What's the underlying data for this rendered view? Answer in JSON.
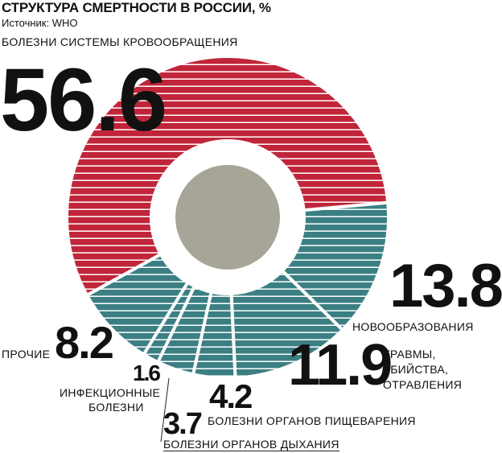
{
  "header": {
    "title": "СТРУКТУРА СМЕРТНОСТИ В РОССИИ, %",
    "source": "Источник: WHO"
  },
  "colors": {
    "red": "#c0253a",
    "teal": "#3b7f83",
    "center": "#a7a597",
    "stripe": "#ffffff"
  },
  "chart_data": {
    "type": "pie",
    "title": "СТРУКТУРА СМЕРТНОСТИ В РОССИИ, %",
    "categories": [
      "БОЛЕЗНИ СИСТЕМЫ КРОВООБРАЩЕНИЯ",
      "НОВООБРАЗОВАНИЯ",
      "ТРАВМЫ, УБИЙСТВА, ОТРАВЛЕНИЯ",
      "БОЛЕЗНИ ОРГАНОВ ПИЩЕВАРЕНИЯ",
      "БОЛЕЗНИ ОРГАНОВ ДЫХАНИЯ",
      "ИНФЕКЦИОННЫЕ БОЛЕЗНИ",
      "ПРОЧИЕ"
    ],
    "values": [
      56.6,
      13.8,
      11.9,
      4.2,
      3.7,
      1.6,
      8.2
    ],
    "value_labels": [
      "56.6",
      "13.8",
      "11.9",
      "4.2",
      "3.7",
      "1.6",
      "8.2"
    ],
    "unit": "%"
  },
  "labels": {
    "circulatory": "БОЛЕЗНИ СИСТЕМЫ КРОВООБРАЩЕНИЯ",
    "neoplasms": "НОВООБРАЗОВАНИЯ",
    "trauma_1": "ТРАВМЫ,",
    "trauma_2": "УБИЙСТВА,",
    "trauma_3": "ОТРАВЛЕНИЯ",
    "digestive": "БОЛЕЗНИ ОРГАНОВ ПИЩЕВАРЕНИЯ",
    "respiratory": "БОЛЕЗНИ ОРГАНОВ ДЫХАНИЯ",
    "infectious_1": "ИНФЕКЦИОННЫЕ",
    "infectious_2": "БОЛЕЗНИ",
    "other": "ПРОЧИЕ"
  }
}
